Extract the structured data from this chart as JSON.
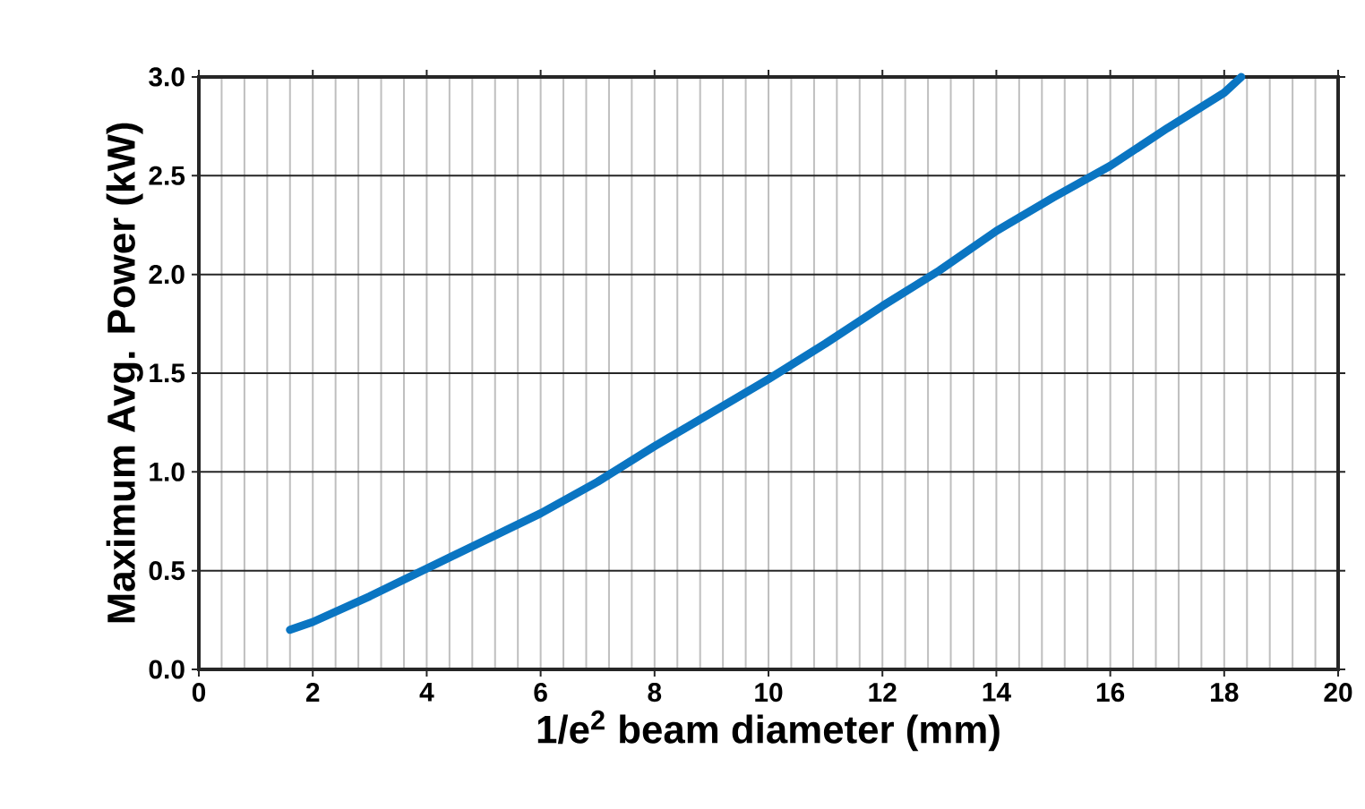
{
  "chart_data": {
    "type": "line",
    "xlabel": "1/e$^{2}$ beam diameter (mm)",
    "ylabel": "Maximum Avg. Power (kW)",
    "xlim": [
      0,
      20
    ],
    "xticks": [
      0,
      2,
      4,
      6,
      8,
      10,
      12,
      14,
      16,
      18,
      20
    ],
    "ylim": [
      0,
      3.0
    ],
    "yticks": [
      {
        "value": 0,
        "label": "0.0"
      },
      {
        "value": 0.5,
        "label": "0.5"
      },
      {
        "value": 1,
        "label": "1.0"
      },
      {
        "value": 1.5,
        "label": "1.5"
      },
      {
        "value": 2,
        "label": "2.0"
      },
      {
        "value": 2.5,
        "label": "2.5"
      },
      {
        "value": 3,
        "label": "3.0"
      }
    ],
    "grid": true,
    "marker": "none",
    "line_style": "solid",
    "series": [
      {
        "color": "#0a75c2",
        "x": [
          1.6,
          2,
          3,
          4,
          5,
          6,
          7,
          8,
          9,
          10,
          11,
          12,
          13,
          14,
          15,
          16,
          17,
          18,
          18.3
        ],
        "values": [
          0.2,
          0.24,
          0.37,
          0.51,
          0.65,
          0.79,
          0.95,
          1.13,
          1.3,
          1.47,
          1.65,
          1.84,
          2.02,
          2.22,
          2.39,
          2.55,
          2.74,
          2.92,
          3.0
        ]
      }
    ]
  }
}
